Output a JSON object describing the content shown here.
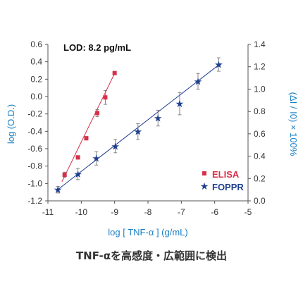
{
  "caption": "TNF-αを高感度・広範囲に検出",
  "chart_data": {
    "type": "scatter",
    "annotation": "LOD: 8.2 pg/mL",
    "xlabel": "log [ TNF-α ] (g/mL)",
    "ylabel_left": "log (O.D.)",
    "ylabel_right": "(ΔI / I0) × 100%",
    "xlim": [
      -11,
      -5
    ],
    "ylim_left": [
      -1.2,
      0.6
    ],
    "ylim_right": [
      0,
      1.4
    ],
    "x_ticks": [
      "-11",
      "-10",
      "-9",
      "-8",
      "-7",
      "-6",
      "-5"
    ],
    "y_left_ticks": [
      "0.6",
      "0.4",
      "0.2",
      "0.0",
      "-0.2",
      "-0.4",
      "-0.6",
      "-0.8",
      "-1.0",
      "-1.2"
    ],
    "y_right_ticks": [
      "1.4",
      "1.2",
      "1.0",
      "0.8",
      "0.6",
      "0.4",
      "0.2",
      "0.0"
    ],
    "legend_position": "bottom-right",
    "series": [
      {
        "name": "ELISA",
        "axis": "left",
        "marker": "square",
        "color": "#d6304b",
        "x": [
          -10.5,
          -10.1,
          -9.85,
          -9.52,
          -9.28,
          -9.0
        ],
        "y": [
          -0.9,
          -0.7,
          -0.48,
          -0.19,
          -0.01,
          0.27
        ],
        "err": [
          0.03,
          0.02,
          0.02,
          0.04,
          0.08,
          0.02
        ],
        "fit": [
          [
            -10.58,
            -0.98
          ],
          [
            -8.97,
            0.29
          ]
        ]
      },
      {
        "name": "FOPPR",
        "axis": "right",
        "marker": "star",
        "color": "#1f3f8f",
        "x": [
          -10.7,
          -10.1,
          -9.55,
          -8.98,
          -8.3,
          -7.7,
          -7.05,
          -6.5,
          -5.88
        ],
        "y": [
          0.1,
          0.24,
          0.38,
          0.49,
          0.62,
          0.74,
          0.87,
          1.07,
          1.22
        ],
        "err": [
          0.03,
          0.05,
          0.06,
          0.06,
          0.07,
          0.07,
          0.1,
          0.07,
          0.06
        ],
        "fit": [
          [
            -10.75,
            0.09
          ],
          [
            -5.82,
            1.23
          ]
        ]
      }
    ]
  }
}
